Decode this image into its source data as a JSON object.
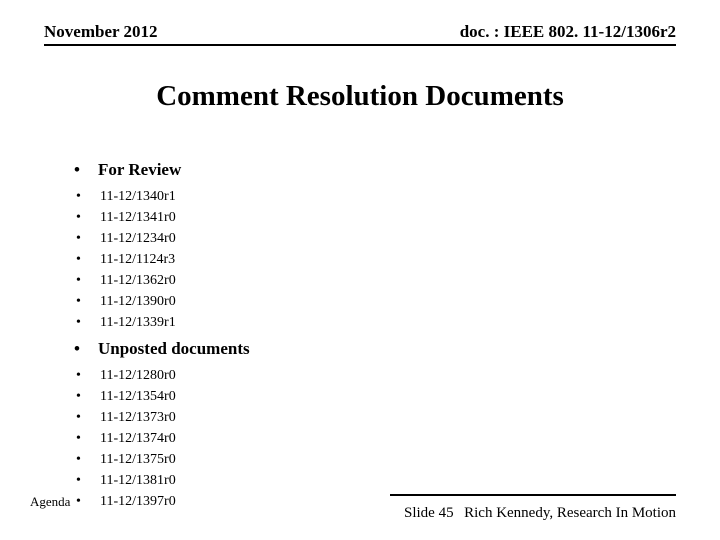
{
  "header": {
    "left": "November 2012",
    "right": "doc. : IEEE 802. 11-12/1306r2"
  },
  "title": "Comment Resolution Documents",
  "sections": [
    {
      "heading": "For Review",
      "items": [
        "11-12/1340r1",
        "11-12/1341r0",
        "11-12/1234r0",
        "11-12/1124r3",
        "11-12/1362r0",
        "11-12/1390r0",
        "11-12/1339r1"
      ]
    },
    {
      "heading": "Unposted documents",
      "items": [
        "11-12/1280r0",
        "11-12/1354r0",
        "11-12/1373r0",
        "11-12/1374r0",
        "11-12/1375r0",
        "11-12/1381r0",
        "11-12/1397r0"
      ]
    }
  ],
  "footer": {
    "left": "Agenda",
    "center": "Slide 45",
    "right": "Rich Kennedy, Research In Motion"
  },
  "style": {
    "background": "#ffffff",
    "text_color": "#000000",
    "font_family": "Times New Roman",
    "title_fontsize": 29,
    "header_fontsize": 17,
    "section_heading_fontsize": 17,
    "item_fontsize": 14,
    "footer_fontsize": 15
  }
}
